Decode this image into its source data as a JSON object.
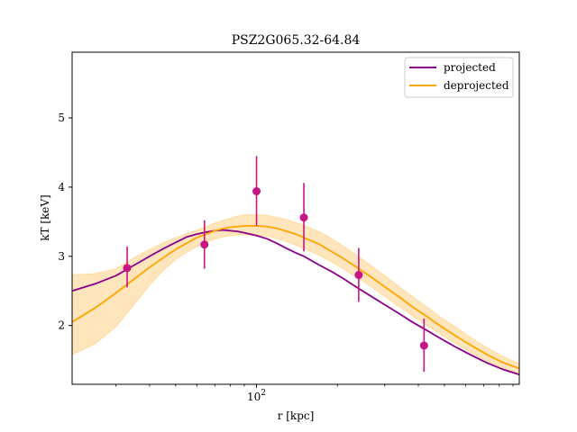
{
  "chart_data": {
    "type": "line",
    "title": "PSZ2G065.32-64.84",
    "xlabel": "r [kpc]",
    "ylabel": "kT [keV]",
    "xscale": "log",
    "xlim": [
      20.6,
      950
    ],
    "ylim": [
      1.15,
      5.95
    ],
    "x_ticks": [
      {
        "value": 100,
        "base": "10",
        "exp": "2"
      }
    ],
    "y_ticks": [
      2,
      3,
      4,
      5
    ],
    "grid": false,
    "legend_position": "top-right",
    "colors": {
      "projected": "#8b008b",
      "deprojected": "#ffa500",
      "band": "#ffe0b0",
      "data": "#c71585"
    },
    "series": [
      {
        "name": "projected",
        "x": [
          20.6,
          25,
          30,
          35,
          40,
          45,
          50,
          55,
          60,
          65,
          70,
          75,
          80,
          85,
          90,
          100,
          110,
          120,
          130,
          140,
          150,
          170,
          190,
          210,
          230,
          260,
          300,
          340,
          380,
          430,
          480,
          550,
          630,
          720,
          820,
          950
        ],
        "y": [
          2.5,
          2.6,
          2.72,
          2.87,
          3.0,
          3.11,
          3.2,
          3.28,
          3.32,
          3.35,
          3.37,
          3.38,
          3.37,
          3.36,
          3.34,
          3.3,
          3.25,
          3.18,
          3.11,
          3.05,
          3.0,
          2.88,
          2.78,
          2.68,
          2.58,
          2.45,
          2.3,
          2.17,
          2.05,
          1.93,
          1.82,
          1.69,
          1.57,
          1.46,
          1.37,
          1.29
        ]
      },
      {
        "name": "deprojected",
        "x": [
          20.6,
          25,
          30,
          35,
          40,
          45,
          50,
          55,
          60,
          65,
          70,
          75,
          80,
          85,
          90,
          100,
          110,
          120,
          130,
          140,
          150,
          170,
          190,
          210,
          230,
          260,
          300,
          340,
          380,
          430,
          480,
          550,
          630,
          720,
          820,
          950
        ],
        "y": [
          2.05,
          2.25,
          2.47,
          2.67,
          2.84,
          2.98,
          3.1,
          3.19,
          3.27,
          3.32,
          3.37,
          3.4,
          3.42,
          3.43,
          3.44,
          3.44,
          3.43,
          3.4,
          3.36,
          3.32,
          3.27,
          3.18,
          3.07,
          2.97,
          2.87,
          2.73,
          2.56,
          2.41,
          2.27,
          2.13,
          2.0,
          1.85,
          1.71,
          1.58,
          1.47,
          1.38
        ],
        "y_low": [
          1.58,
          1.73,
          1.98,
          2.3,
          2.58,
          2.8,
          2.95,
          3.06,
          3.14,
          3.2,
          3.25,
          3.28,
          3.3,
          3.31,
          3.31,
          3.3,
          3.29,
          3.25,
          3.21,
          3.16,
          3.11,
          3.02,
          2.92,
          2.82,
          2.72,
          2.59,
          2.42,
          2.27,
          2.14,
          2.0,
          1.88,
          1.74,
          1.6,
          1.48,
          1.39,
          1.3
        ],
        "y_high": [
          2.73,
          2.75,
          2.82,
          2.98,
          3.1,
          3.2,
          3.27,
          3.33,
          3.38,
          3.43,
          3.48,
          3.52,
          3.55,
          3.58,
          3.6,
          3.6,
          3.59,
          3.56,
          3.53,
          3.49,
          3.45,
          3.36,
          3.26,
          3.15,
          3.05,
          2.9,
          2.72,
          2.56,
          2.42,
          2.27,
          2.13,
          1.98,
          1.82,
          1.68,
          1.56,
          1.45
        ]
      }
    ],
    "data_points": [
      {
        "x": 33,
        "y": 2.83,
        "y_low": 2.55,
        "y_high": 3.14
      },
      {
        "x": 64,
        "y": 3.17,
        "y_low": 2.82,
        "y_high": 3.52
      },
      {
        "x": 100,
        "y": 3.94,
        "y_low": 3.44,
        "y_high": 4.45
      },
      {
        "x": 150,
        "y": 3.56,
        "y_low": 3.07,
        "y_high": 4.06
      },
      {
        "x": 240,
        "y": 2.73,
        "y_low": 2.34,
        "y_high": 3.12
      },
      {
        "x": 420,
        "y": 1.71,
        "y_low": 1.33,
        "y_high": 2.1
      }
    ]
  }
}
